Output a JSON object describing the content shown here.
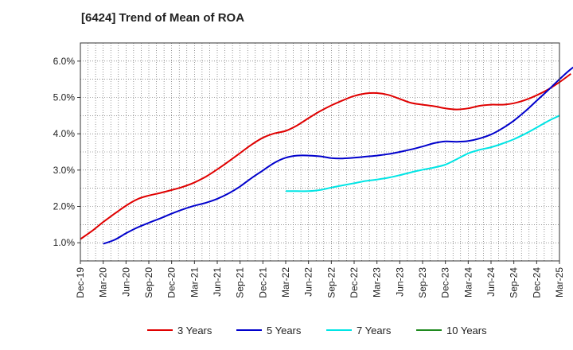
{
  "title": "[6424]  Trend of Mean of ROA",
  "chart_data": {
    "type": "line",
    "title": "[6424]  Trend of Mean of ROA",
    "xlabel": "",
    "ylabel": "",
    "x_ticks": [
      "Dec-19",
      "Mar-20",
      "Jun-20",
      "Sep-20",
      "Dec-20",
      "Mar-21",
      "Jun-21",
      "Sep-21",
      "Dec-21",
      "Mar-22",
      "Jun-22",
      "Sep-22",
      "Dec-22",
      "Mar-23",
      "Jun-23",
      "Sep-23",
      "Dec-23",
      "Mar-24",
      "Jun-24",
      "Sep-24",
      "Dec-24",
      "Mar-25"
    ],
    "y_ticks": [
      "1.0%",
      "2.0%",
      "3.0%",
      "4.0%",
      "5.0%",
      "6.0%"
    ],
    "ylim": [
      0.5,
      6.5
    ],
    "grid": true,
    "legend_position": "bottom",
    "series": [
      {
        "name": "3 Years",
        "color": "#e00000",
        "x_start_index": 0,
        "values": [
          1.1,
          1.32,
          1.57,
          1.8,
          2.02,
          2.2,
          2.3,
          2.37,
          2.45,
          2.54,
          2.66,
          2.82,
          3.02,
          3.24,
          3.47,
          3.7,
          3.89,
          4.01,
          4.08,
          4.23,
          4.43,
          4.62,
          4.78,
          4.92,
          5.04,
          5.11,
          5.12,
          5.07,
          4.96,
          4.85,
          4.8,
          4.76,
          4.7,
          4.67,
          4.7,
          4.77,
          4.8,
          4.8,
          4.84,
          4.93,
          5.06,
          5.22,
          5.42,
          5.65
        ]
      },
      {
        "name": "5 Years",
        "color": "#0000cc",
        "x_start_index": 1,
        "values": [
          0.97,
          1.08,
          1.26,
          1.42,
          1.55,
          1.67,
          1.8,
          1.92,
          2.02,
          2.1,
          2.21,
          2.36,
          2.55,
          2.78,
          2.99,
          3.2,
          3.34,
          3.4,
          3.4,
          3.38,
          3.33,
          3.32,
          3.34,
          3.37,
          3.4,
          3.44,
          3.5,
          3.57,
          3.65,
          3.74,
          3.79,
          3.78,
          3.8,
          3.87,
          3.98,
          4.15,
          4.36,
          4.62,
          4.91,
          5.2,
          5.5,
          5.78,
          5.98
        ]
      },
      {
        "name": "7 Years",
        "color": "#00e5e5",
        "x_start_index": 9,
        "values": [
          2.42,
          2.42,
          2.42,
          2.45,
          2.52,
          2.58,
          2.64,
          2.7,
          2.74,
          2.79,
          2.86,
          2.94,
          3.01,
          3.07,
          3.15,
          3.3,
          3.46,
          3.56,
          3.63,
          3.73,
          3.85,
          4.0,
          4.17,
          4.35,
          4.5
        ]
      },
      {
        "name": "10 Years",
        "color": "#1f8a1f",
        "x_start_index": 0,
        "values": []
      }
    ]
  },
  "legend": [
    {
      "label": "3 Years",
      "color": "#e00000"
    },
    {
      "label": "5 Years",
      "color": "#0000cc"
    },
    {
      "label": "7 Years",
      "color": "#00e5e5"
    },
    {
      "label": "10 Years",
      "color": "#1f8a1f"
    }
  ]
}
